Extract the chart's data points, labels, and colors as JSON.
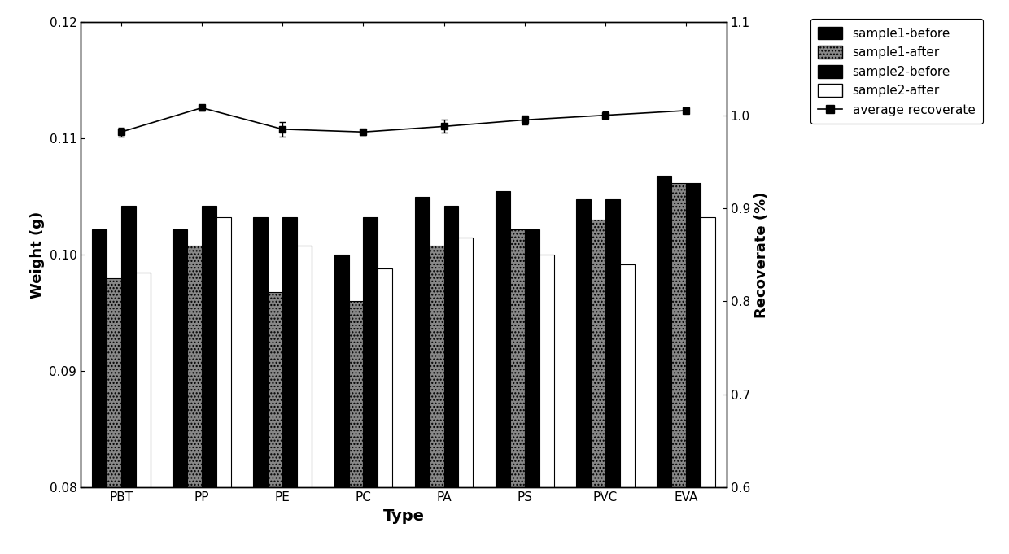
{
  "categories": [
    "PBT",
    "PP",
    "PE",
    "PC",
    "PA",
    "PS",
    "PVC",
    "EVA"
  ],
  "sample1_before": [
    0.1022,
    0.1022,
    0.1032,
    0.1,
    0.105,
    0.1055,
    0.1048,
    0.1068
  ],
  "sample1_after": [
    0.098,
    0.1008,
    0.0968,
    0.096,
    0.1008,
    0.1022,
    0.103,
    0.1062
  ],
  "sample2_before": [
    0.1042,
    0.1042,
    0.1032,
    0.1032,
    0.1042,
    0.1022,
    0.1048,
    0.1062
  ],
  "sample2_after": [
    0.0985,
    0.1032,
    0.1008,
    0.0988,
    0.1015,
    0.1,
    0.0992,
    0.1032
  ],
  "avg_recoverate": [
    0.982,
    1.008,
    0.985,
    0.982,
    0.988,
    0.995,
    1.0,
    1.005
  ],
  "avg_recoverate_err": [
    0.005,
    0.003,
    0.008,
    0.003,
    0.007,
    0.005,
    0.004,
    0.003
  ],
  "ylim_left": [
    0.08,
    0.12
  ],
  "ylim_right": [
    0.6,
    1.1
  ],
  "xlabel": "Type",
  "ylabel_left": "Weight (g)",
  "ylabel_right": "Recoverate (%)",
  "bar_width": 0.18,
  "figure_size": [
    12.4,
    6.81
  ],
  "dpi": 100
}
